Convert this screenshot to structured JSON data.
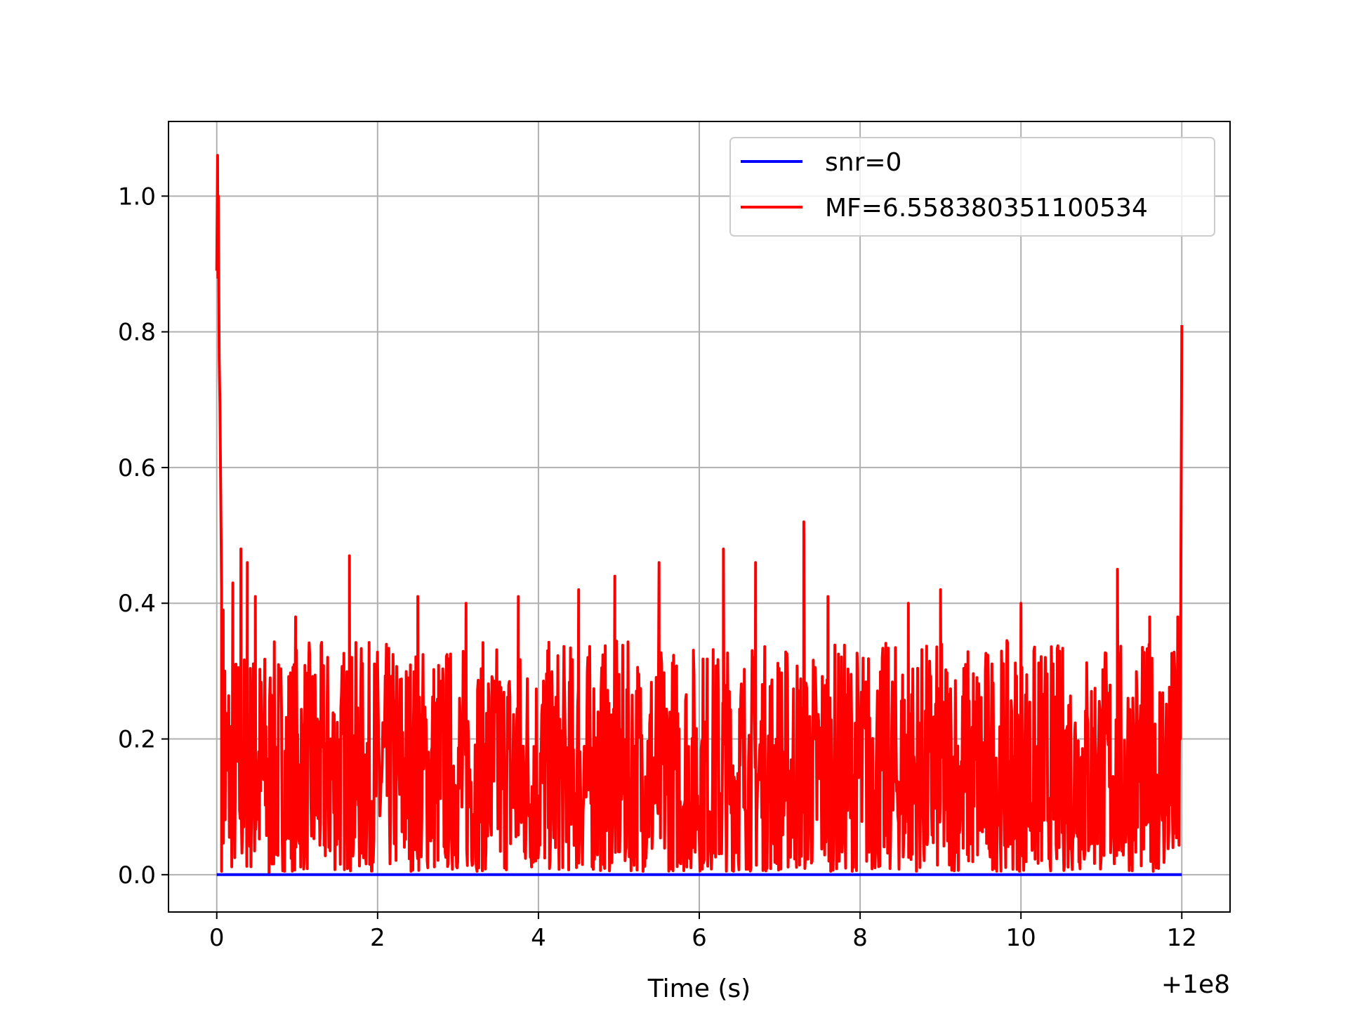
{
  "chart_data": {
    "type": "line",
    "title": "",
    "xlabel": "Time (s)",
    "ylabel": "",
    "x_offset_label": "+1e8",
    "xlim": [
      -0.6,
      12.6
    ],
    "ylim": [
      -0.055,
      1.11
    ],
    "xticks": [
      0,
      2,
      4,
      6,
      8,
      10,
      12
    ],
    "xtick_labels": [
      "0",
      "2",
      "4",
      "6",
      "8",
      "10",
      "12"
    ],
    "yticks": [
      0.0,
      0.2,
      0.4,
      0.6,
      0.8,
      1.0
    ],
    "ytick_labels": [
      "0.0",
      "0.2",
      "0.4",
      "0.6",
      "0.8",
      "1.0"
    ],
    "grid": true,
    "legend_position": "top-right",
    "series": [
      {
        "name": "snr=0",
        "color": "#0000ff",
        "x": [
          0,
          12
        ],
        "y": [
          0,
          0
        ]
      },
      {
        "name": "MF=6.558380351100534",
        "color": "#ff0000",
        "noise": {
          "x_range": [
            0.06,
            11.98
          ],
          "y_min": 0.005,
          "y_max": 0.345,
          "sample_count": 1600
        },
        "x": [
          0.0,
          0.01,
          0.015,
          0.02,
          0.03,
          0.04,
          0.05,
          0.06,
          0.08,
          0.1,
          0.2,
          0.3,
          0.38,
          0.48,
          0.65,
          0.98,
          1.65,
          2.5,
          3.1,
          3.75,
          4.5,
          4.95,
          5.5,
          6.3,
          6.7,
          7.3,
          7.6,
          8.6,
          9.0,
          10.0,
          11.2,
          11.6,
          11.9,
          11.95,
          11.98,
          12.0
        ],
        "y": [
          0.89,
          1.06,
          0.88,
          1.0,
          0.76,
          0.69,
          0.55,
          0.42,
          0.39,
          0.3,
          0.43,
          0.48,
          0.46,
          0.41,
          0.0,
          0.38,
          0.47,
          0.41,
          0.4,
          0.41,
          0.42,
          0.44,
          0.46,
          0.48,
          0.46,
          0.52,
          0.41,
          0.4,
          0.42,
          0.4,
          0.45,
          0.38,
          0.06,
          0.38,
          0.2,
          0.81
        ]
      }
    ]
  }
}
